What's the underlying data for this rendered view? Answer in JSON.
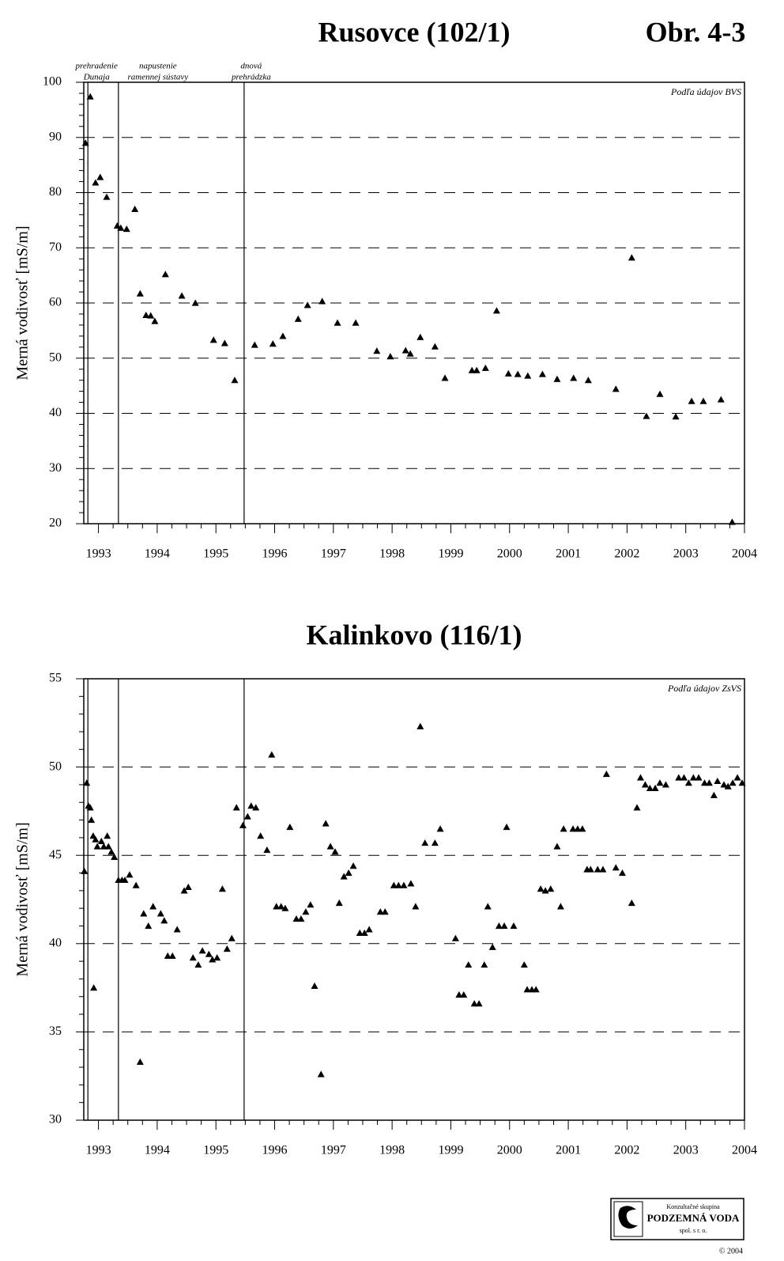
{
  "figure_label": "Obr. 4-3",
  "logo": {
    "lines": [
      "Konzultačné skupina",
      "PODZEMNÁ VODA",
      "spol. s r. o."
    ],
    "copyright": "© 2004"
  },
  "chart_data": [
    {
      "type": "scatter",
      "title": "Rusovce (102/1)",
      "ylabel": "Merná vodivosť [mS/m]",
      "source": "Podľa údajov BVS",
      "color": "#000000",
      "grid": true,
      "xlim": [
        1992.75,
        2004
      ],
      "xticks": [
        1993,
        1994,
        1995,
        1996,
        1997,
        1998,
        1999,
        2000,
        2001,
        2002,
        2003,
        2004
      ],
      "ylim": [
        20,
        100
      ],
      "yticks": [
        20,
        30,
        40,
        50,
        60,
        70,
        80,
        90,
        100
      ],
      "vlines": [
        1992.82,
        1993.34,
        1995.48
      ],
      "annotations": [
        {
          "x": 1992.82,
          "lines": [
            "prehradenie",
            "Dunaja"
          ]
        },
        {
          "x": 1993.34,
          "lines": [
            "napustenie",
            "ramennej sústavy"
          ]
        },
        {
          "x": 1995.48,
          "lines": [
            "dnová",
            "prehrádzka"
          ]
        }
      ],
      "x": [
        1992.78,
        1992.86,
        1992.95,
        1993.03,
        1993.14,
        1993.32,
        1993.38,
        1993.48,
        1993.62,
        1993.71,
        1993.81,
        1993.89,
        1993.96,
        1994.14,
        1994.42,
        1994.65,
        1994.96,
        1995.15,
        1995.32,
        1995.66,
        1995.97,
        1996.14,
        1996.4,
        1996.56,
        1996.81,
        1997.07,
        1997.38,
        1997.74,
        1997.97,
        1998.23,
        1998.31,
        1998.48,
        1998.73,
        1998.9,
        1999.36,
        1999.44,
        1999.59,
        1999.78,
        1999.98,
        2000.14,
        2000.31,
        2000.56,
        2000.81,
        2001.09,
        2001.34,
        2001.81,
        2002.08,
        2002.33,
        2002.56,
        2002.83,
        2003.1,
        2003.3,
        2003.6,
        2003.79
      ],
      "values": [
        89,
        97.4,
        81.8,
        82.8,
        79.2,
        74,
        73.6,
        73.4,
        77,
        61.7,
        57.8,
        57.7,
        56.7,
        65.2,
        61.3,
        60,
        53.3,
        52.7,
        46,
        52.4,
        52.6,
        54,
        57.1,
        59.6,
        60.3,
        56.4,
        56.4,
        51.3,
        50.3,
        51.4,
        50.8,
        53.8,
        52.1,
        46.4,
        47.8,
        47.8,
        48.2,
        58.6,
        47.2,
        47.1,
        46.8,
        47.1,
        46.2,
        46.4,
        46,
        44.4,
        68.2,
        39.5,
        43.5,
        39.4,
        42.2,
        42.2,
        42.5,
        20.3
      ]
    },
    {
      "type": "scatter",
      "title": "Kalinkovo (116/1)",
      "ylabel": "Merná vodivosť [mS/m]",
      "source": "Podľa údajov ZsVS",
      "color": "#000000",
      "grid": true,
      "xlim": [
        1992.75,
        2004
      ],
      "xticks": [
        1993,
        1994,
        1995,
        1996,
        1997,
        1998,
        1999,
        2000,
        2001,
        2002,
        2003,
        2004
      ],
      "ylim": [
        30,
        55
      ],
      "yticks": [
        30,
        35,
        40,
        45,
        50,
        55
      ],
      "vlines": [
        1992.82,
        1993.34,
        1995.48
      ],
      "x": [
        1992.76,
        1992.8,
        1992.83,
        1992.86,
        1992.88,
        1992.91,
        1992.92,
        1992.95,
        1992.98,
        1993.05,
        1993.09,
        1993.15,
        1993.17,
        1993.22,
        1993.27,
        1993.34,
        1993.4,
        1993.45,
        1993.53,
        1993.64,
        1993.71,
        1993.77,
        1993.85,
        1993.93,
        1994.06,
        1994.12,
        1994.18,
        1994.26,
        1994.34,
        1994.46,
        1994.53,
        1994.61,
        1994.7,
        1994.77,
        1994.88,
        1994.94,
        1995.02,
        1995.11,
        1995.19,
        1995.27,
        1995.35,
        1995.46,
        1995.54,
        1995.6,
        1995.68,
        1995.76,
        1995.87,
        1995.95,
        1996.03,
        1996.11,
        1996.18,
        1996.26,
        1996.37,
        1996.45,
        1996.53,
        1996.61,
        1996.68,
        1996.79,
        1996.87,
        1996.95,
        1997.03,
        1997.1,
        1997.18,
        1997.26,
        1997.34,
        1997.45,
        1997.53,
        1997.61,
        1997.8,
        1997.88,
        1998.03,
        1998.11,
        1998.2,
        1998.32,
        1998.4,
        1998.48,
        1998.56,
        1998.73,
        1998.82,
        1999.08,
        1999.14,
        1999.22,
        1999.3,
        1999.4,
        1999.48,
        1999.57,
        1999.63,
        1999.71,
        1999.82,
        1999.91,
        1999.95,
        2000.07,
        2000.25,
        2000.3,
        2000.38,
        2000.45,
        2000.53,
        2000.61,
        2000.7,
        2000.81,
        2000.87,
        2000.92,
        2001.08,
        2001.16,
        2001.24,
        2001.32,
        2001.38,
        2001.5,
        2001.59,
        2001.65,
        2001.81,
        2001.92,
        2002.08,
        2002.17,
        2002.23,
        2002.31,
        2002.39,
        2002.48,
        2002.56,
        2002.66,
        2002.88,
        2002.97,
        2003.05,
        2003.13,
        2003.22,
        2003.32,
        2003.4,
        2003.48,
        2003.54,
        2003.65,
        2003.72,
        2003.8,
        2003.88,
        2003.96
      ],
      "values": [
        44.1,
        49.1,
        47.8,
        47.7,
        47.0,
        46.1,
        37.5,
        45.9,
        45.5,
        45.8,
        45.5,
        46.1,
        45.5,
        45.2,
        44.9,
        43.6,
        43.6,
        43.6,
        43.9,
        43.3,
        33.3,
        41.7,
        41.0,
        42.1,
        41.7,
        41.3,
        39.3,
        39.3,
        40.8,
        43.0,
        43.2,
        39.2,
        38.8,
        39.6,
        39.4,
        39.1,
        39.2,
        43.1,
        39.7,
        40.3,
        47.7,
        46.7,
        47.2,
        47.8,
        47.7,
        46.1,
        45.3,
        50.7,
        42.1,
        42.1,
        42.0,
        46.6,
        41.4,
        41.4,
        41.8,
        42.2,
        37.6,
        32.6,
        46.8,
        45.5,
        45.2,
        42.3,
        43.8,
        44.0,
        44.4,
        40.6,
        40.6,
        40.8,
        41.8,
        41.8,
        43.3,
        43.3,
        43.3,
        43.4,
        42.1,
        52.3,
        45.7,
        45.7,
        46.5,
        40.3,
        37.1,
        37.1,
        38.8,
        36.6,
        36.6,
        38.8,
        42.1,
        39.8,
        41.0,
        41.0,
        46.6,
        41.0,
        38.8,
        37.4,
        37.4,
        37.4,
        43.1,
        43.0,
        43.1,
        45.5,
        42.1,
        46.5,
        46.5,
        46.5,
        46.5,
        44.2,
        44.2,
        44.2,
        44.2,
        49.6,
        44.3,
        44.0,
        42.3,
        47.7,
        49.4,
        49.0,
        48.8,
        48.8,
        49.1,
        49.0,
        49.4,
        49.4,
        49.1,
        49.4,
        49.4,
        49.1,
        49.1,
        48.4,
        49.2,
        49.0,
        48.9,
        49.1,
        49.4,
        49.1
      ]
    }
  ]
}
